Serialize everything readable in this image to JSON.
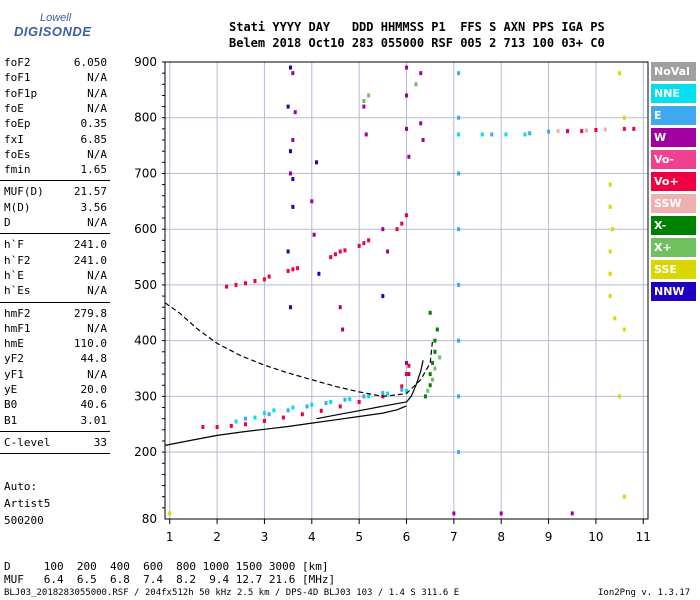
{
  "logo": {
    "top": "Lowell",
    "main": "DIGISONDE"
  },
  "header": {
    "row1": "Stati YYYY DAY   DDD HHMMSS P1  FFS S AXN PPS IGA PS",
    "row2": "Belem 2018 Oct10 283 055000 RSF 005 2 713 100 03+ C0"
  },
  "params": [
    {
      "label": "foF2",
      "value": "6.050"
    },
    {
      "label": "foF1",
      "value": "N/A"
    },
    {
      "label": "foF1p",
      "value": "N/A"
    },
    {
      "label": "foE",
      "value": "N/A"
    },
    {
      "label": "foEp",
      "value": "0.35"
    },
    {
      "label": "fxI",
      "value": "6.85"
    },
    {
      "label": "foEs",
      "value": "N/A"
    },
    {
      "label": "fmin",
      "value": "1.65"
    },
    {
      "label": "MUF(D)",
      "value": "21.57"
    },
    {
      "label": "M(D)",
      "value": "3.56"
    },
    {
      "label": "D",
      "value": "N/A"
    },
    {
      "label": "h`F",
      "value": "241.0"
    },
    {
      "label": "h`F2",
      "value": "241.0"
    },
    {
      "label": "h`E",
      "value": "N/A"
    },
    {
      "label": "h`Es",
      "value": "N/A"
    },
    {
      "label": "hmF2",
      "value": "279.8"
    },
    {
      "label": "hmF1",
      "value": "N/A"
    },
    {
      "label": "hmE",
      "value": "110.0"
    },
    {
      "label": "yF2",
      "value": "44.8"
    },
    {
      "label": "yF1",
      "value": "N/A"
    },
    {
      "label": "yE",
      "value": "20.0"
    },
    {
      "label": "B0",
      "value": "40.6"
    },
    {
      "label": "B1",
      "value": "3.01"
    },
    {
      "label": "C-level",
      "value": "33"
    }
  ],
  "auto": {
    "line1": "Auto:",
    "line2": "Artist5",
    "line3": "500200"
  },
  "legend": [
    {
      "label": "NoVal",
      "color": "#a0a0a0"
    },
    {
      "label": "NNE",
      "color": "#00e0f0"
    },
    {
      "label": "E",
      "color": "#40a8f0"
    },
    {
      "label": "W",
      "color": "#a000a0"
    },
    {
      "label": "Vo-",
      "color": "#f04090"
    },
    {
      "label": "Vo+",
      "color": "#f00040"
    },
    {
      "label": "SSW",
      "color": "#f0b0b0"
    },
    {
      "label": "X-",
      "color": "#008000"
    },
    {
      "label": "X+",
      "color": "#70c060"
    },
    {
      "label": "SSE",
      "color": "#d8d800"
    },
    {
      "label": "NNW",
      "color": "#2000c0"
    }
  ],
  "dtable": {
    "row1": "D     100  200  400  600  800 1000 1500 3000 [km]",
    "row2": "MUF   6.4  6.5  6.8  7.4  8.2  9.4 12.7 21.6 [MHz]"
  },
  "footer": {
    "left": "BLJ03_2018283055000.RSF / 204fx512h 50 kHz 2.5 km / DPS-4D BLJ03 103 / 1.4 S 311.6 E",
    "right": "Ion2Png v. 1.3.17"
  },
  "chart_data": {
    "type": "scatter",
    "x_ticks": [
      "1",
      "2",
      "3",
      "4",
      "5",
      "6",
      "7",
      "8",
      "9",
      "10",
      "11"
    ],
    "y_ticks": [
      "80",
      "200",
      "300",
      "400",
      "500",
      "600",
      "700",
      "800",
      "900"
    ],
    "xlim": [
      0.9,
      11.1
    ],
    "ylim": [
      80,
      900
    ],
    "grid": true,
    "series": [
      {
        "name": "W",
        "color": "#a000a0",
        "points": [
          [
            3.6,
            880
          ],
          [
            3.65,
            810
          ],
          [
            3.6,
            760
          ],
          [
            3.55,
            700
          ],
          [
            4.0,
            650
          ],
          [
            4.05,
            590
          ],
          [
            4.6,
            460
          ],
          [
            4.65,
            420
          ],
          [
            5.1,
            820
          ],
          [
            5.15,
            770
          ],
          [
            5.5,
            600
          ],
          [
            5.6,
            560
          ],
          [
            6.0,
            890
          ],
          [
            6.0,
            840
          ],
          [
            6.0,
            780
          ],
          [
            6.05,
            730
          ],
          [
            6.3,
            880
          ],
          [
            6.3,
            790
          ],
          [
            6.35,
            760
          ],
          [
            6.0,
            360
          ],
          [
            6.05,
            340
          ],
          [
            7.0,
            90
          ],
          [
            8.0,
            90
          ],
          [
            9.5,
            90
          ]
        ]
      },
      {
        "name": "Vo+",
        "color": "#f00040",
        "points": [
          [
            2.2,
            497
          ],
          [
            2.4,
            500
          ],
          [
            2.6,
            503
          ],
          [
            2.8,
            507
          ],
          [
            3.0,
            510
          ],
          [
            3.1,
            515
          ],
          [
            3.5,
            525
          ],
          [
            3.6,
            528
          ],
          [
            3.7,
            530
          ],
          [
            4.4,
            550
          ],
          [
            4.5,
            555
          ],
          [
            4.6,
            560
          ],
          [
            4.7,
            562
          ],
          [
            5.0,
            570
          ],
          [
            5.1,
            575
          ],
          [
            5.2,
            580
          ],
          [
            5.8,
            600
          ],
          [
            5.9,
            610
          ],
          [
            6.0,
            625
          ],
          [
            1.7,
            245
          ],
          [
            2.0,
            245
          ],
          [
            2.3,
            247
          ],
          [
            2.6,
            250
          ],
          [
            3.0,
            256
          ],
          [
            3.4,
            262
          ],
          [
            3.8,
            268
          ],
          [
            4.2,
            274
          ],
          [
            4.6,
            282
          ],
          [
            5.0,
            290
          ],
          [
            5.5,
            300
          ],
          [
            5.9,
            318
          ],
          [
            6.0,
            340
          ],
          [
            6.05,
            355
          ],
          [
            9.4,
            776
          ],
          [
            9.7,
            776
          ],
          [
            10.0,
            778
          ],
          [
            10.6,
            780
          ],
          [
            10.8,
            780
          ]
        ]
      },
      {
        "name": "NNE",
        "color": "#00e0f0",
        "points": [
          [
            2.4,
            255
          ],
          [
            2.8,
            262
          ],
          [
            3.0,
            270
          ],
          [
            3.2,
            275
          ],
          [
            3.6,
            280
          ],
          [
            4.0,
            285
          ],
          [
            4.4,
            290
          ],
          [
            4.8,
            295
          ],
          [
            5.2,
            300
          ],
          [
            5.6,
            305
          ],
          [
            6.0,
            310
          ],
          [
            7.1,
            770
          ],
          [
            7.6,
            770
          ],
          [
            8.1,
            770
          ],
          [
            8.5,
            770
          ]
        ]
      },
      {
        "name": "E",
        "color": "#40a8f0",
        "points": [
          [
            2.6,
            260
          ],
          [
            3.1,
            268
          ],
          [
            3.5,
            275
          ],
          [
            3.9,
            282
          ],
          [
            4.3,
            288
          ],
          [
            4.7,
            294
          ],
          [
            5.1,
            300
          ],
          [
            5.5,
            306
          ],
          [
            5.9,
            312
          ],
          [
            7.1,
            200
          ],
          [
            7.1,
            300
          ],
          [
            7.1,
            400
          ],
          [
            7.1,
            500
          ],
          [
            7.1,
            600
          ],
          [
            7.1,
            700
          ],
          [
            7.1,
            800
          ],
          [
            7.1,
            880
          ],
          [
            7.8,
            770
          ],
          [
            8.6,
            772
          ],
          [
            9.0,
            775
          ]
        ]
      },
      {
        "name": "X-",
        "color": "#008000",
        "points": [
          [
            6.4,
            300
          ],
          [
            6.5,
            320
          ],
          [
            6.5,
            340
          ],
          [
            6.55,
            360
          ],
          [
            6.6,
            380
          ],
          [
            6.6,
            400
          ],
          [
            6.65,
            420
          ],
          [
            6.5,
            450
          ]
        ]
      },
      {
        "name": "X+",
        "color": "#70c060",
        "points": [
          [
            6.45,
            310
          ],
          [
            6.55,
            330
          ],
          [
            6.6,
            350
          ],
          [
            6.7,
            370
          ],
          [
            5.2,
            840
          ],
          [
            5.1,
            830
          ],
          [
            6.2,
            860
          ]
        ]
      },
      {
        "name": "NNW",
        "color": "#2000c0",
        "points": [
          [
            3.55,
            890
          ],
          [
            3.5,
            820
          ],
          [
            3.55,
            740
          ],
          [
            3.6,
            690
          ],
          [
            3.6,
            640
          ],
          [
            3.5,
            560
          ],
          [
            3.55,
            460
          ],
          [
            4.1,
            720
          ],
          [
            4.15,
            520
          ],
          [
            5.5,
            480
          ]
        ]
      },
      {
        "name": "SSE",
        "color": "#d8d800",
        "points": [
          [
            10.3,
            680
          ],
          [
            10.3,
            640
          ],
          [
            10.35,
            600
          ],
          [
            10.3,
            560
          ],
          [
            10.3,
            520
          ],
          [
            10.3,
            480
          ],
          [
            10.4,
            440
          ],
          [
            10.5,
            880
          ],
          [
            10.6,
            800
          ],
          [
            10.6,
            420
          ],
          [
            10.5,
            300
          ],
          [
            10.6,
            120
          ],
          [
            1.0,
            90
          ]
        ]
      },
      {
        "name": "SSW",
        "color": "#f0b0b0",
        "points": [
          [
            9.2,
            776
          ],
          [
            9.8,
            777
          ],
          [
            10.2,
            779
          ]
        ]
      }
    ],
    "lines": [
      {
        "name": "profile-solid",
        "style": "solid",
        "points": [
          [
            0.9,
            212
          ],
          [
            1.5,
            222
          ],
          [
            2.0,
            230
          ],
          [
            2.5,
            236
          ],
          [
            3.0,
            241
          ],
          [
            3.5,
            246
          ],
          [
            4.0,
            252
          ],
          [
            4.5,
            258
          ],
          [
            5.0,
            264
          ],
          [
            5.5,
            270
          ],
          [
            5.8,
            276
          ],
          [
            6.0,
            283
          ]
        ]
      },
      {
        "name": "extraordinary-dashed",
        "style": "dashed",
        "points": [
          [
            0.9,
            468
          ],
          [
            1.2,
            450
          ],
          [
            1.6,
            420
          ],
          [
            2.0,
            395
          ],
          [
            2.5,
            373
          ],
          [
            3.0,
            356
          ],
          [
            3.5,
            342
          ],
          [
            4.0,
            330
          ],
          [
            4.5,
            318
          ],
          [
            5.0,
            308
          ],
          [
            5.5,
            300
          ],
          [
            6.0,
            305
          ],
          [
            6.3,
            330
          ],
          [
            6.5,
            360
          ],
          [
            6.55,
            400
          ]
        ]
      },
      {
        "name": "trace-black",
        "style": "solid",
        "points": [
          [
            4.1,
            260
          ],
          [
            4.6,
            268
          ],
          [
            5.1,
            276
          ],
          [
            5.6,
            284
          ],
          [
            6.0,
            290
          ],
          [
            6.1,
            300
          ],
          [
            6.2,
            320
          ],
          [
            6.3,
            345
          ],
          [
            6.35,
            365
          ]
        ]
      }
    ]
  }
}
